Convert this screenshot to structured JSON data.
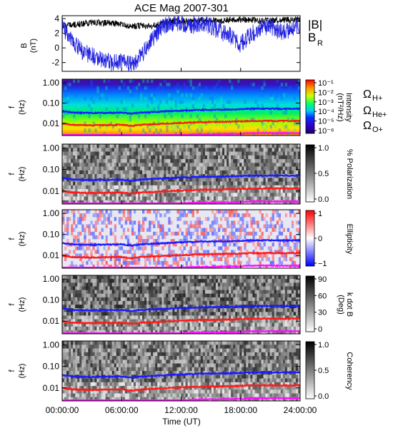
{
  "title": "ACE Mag 2007-301",
  "x_axis": {
    "label": "Time (UT)",
    "ticks": [
      "00:00:00",
      "06:00:00",
      "12:00:00",
      "18:00:00",
      "24:00:00"
    ],
    "range_hours": [
      0,
      24
    ]
  },
  "panel1": {
    "ylabel_line1": "B",
    "ylabel_line2": "(nT)",
    "ticks": [
      "4",
      "2",
      "0",
      "-2"
    ],
    "ylim": [
      -3.2,
      4.4
    ],
    "legend": [
      {
        "text": "|B|",
        "color": "#000000"
      },
      {
        "text": "B",
        "sub": "R",
        "color": "#2020e0"
      }
    ]
  },
  "freq_ticks": [
    "1.00",
    "0.10",
    "0.01"
  ],
  "freq_ylabel_line1": "f",
  "freq_ylabel_line2": "(Hz)",
  "spectrogram_panels": [
    {
      "colorbar": "rainbow",
      "cb_ticks": [
        "10⁻¹",
        "10⁻²",
        "10⁻³",
        "10⁻⁴",
        "10⁻⁵",
        "10⁻⁶"
      ],
      "cb_label_line1": "Intensity",
      "cb_label_line2": "(nT²/Hz)"
    },
    {
      "colorbar": "gray",
      "cb_ticks": [
        "1.0",
        "0.5",
        "0.0"
      ],
      "cb_label_line1": "% Polarization",
      "cb_label_line2": ""
    },
    {
      "colorbar": "redblue",
      "cb_ticks": [
        "1",
        "0",
        "−1"
      ],
      "cb_label_line1": "Ellipticity",
      "cb_label_line2": ""
    },
    {
      "colorbar": "gray",
      "cb_ticks": [
        "90",
        "60",
        "30",
        "0"
      ],
      "cb_label_line1": "k dot B",
      "cb_label_line2": "(Deg)"
    },
    {
      "colorbar": "gray",
      "cb_ticks": [
        "1.0",
        "0.5",
        "0.0"
      ],
      "cb_label_line1": "Coherency",
      "cb_label_line2": ""
    }
  ],
  "gyro_legend": [
    {
      "symbol": "Ω",
      "sub": "H+",
      "color": "#1a1aff"
    },
    {
      "symbol": "Ω",
      "sub": "He+",
      "color": "#ff1a1a"
    },
    {
      "symbol": "Ω",
      "sub": "O+",
      "color": "#ff10ff"
    }
  ],
  "colors": {
    "b_total": "#000000",
    "b_radial": "#2020e0",
    "omega_h": "#1a1aff",
    "omega_he": "#ff1a1a",
    "omega_o": "#ff10ff"
  },
  "chart_data": {
    "type": "line",
    "title": "ACE Mag 2007-301",
    "xlabel": "Time (UT)",
    "x_hours": [
      0,
      1,
      2,
      3,
      4,
      5,
      6,
      7,
      8,
      9,
      10,
      11,
      12,
      13,
      14,
      15,
      16,
      17,
      18,
      19,
      20,
      21,
      22,
      23,
      24
    ],
    "series": [
      {
        "name": "|B|",
        "ylabel": "B (nT)",
        "values": [
          2.9,
          3.1,
          3.3,
          3.5,
          3.4,
          3.4,
          3.2,
          3.0,
          3.0,
          3.0,
          3.3,
          3.7,
          3.6,
          3.6,
          3.8,
          3.7,
          3.7,
          3.8,
          3.9,
          3.8,
          3.7,
          3.7,
          3.8,
          3.8,
          3.9
        ]
      },
      {
        "name": "B_R",
        "ylabel": "B (nT)",
        "values": [
          3.0,
          1.0,
          -0.5,
          -1.0,
          -1.6,
          -2.0,
          -1.8,
          -2.3,
          -1.0,
          1.0,
          2.8,
          3.4,
          3.2,
          3.0,
          3.3,
          3.0,
          2.2,
          1.6,
          0.5,
          1.8,
          2.8,
          3.0,
          2.2,
          2.5,
          3.2
        ]
      },
      {
        "name": "Ω H+",
        "unit": "Hz",
        "values": [
          0.04,
          0.034,
          0.033,
          0.032,
          0.033,
          0.033,
          0.034,
          0.03,
          0.034,
          0.036,
          0.038,
          0.04,
          0.042,
          0.044,
          0.046,
          0.046,
          0.047,
          0.048,
          0.05,
          0.052,
          0.052,
          0.053,
          0.052,
          0.052,
          0.053
        ]
      },
      {
        "name": "Ω He+",
        "unit": "Hz",
        "values": [
          0.01,
          0.0085,
          0.0083,
          0.008,
          0.0083,
          0.0083,
          0.0085,
          0.0075,
          0.0085,
          0.009,
          0.0095,
          0.01,
          0.0105,
          0.011,
          0.0115,
          0.0115,
          0.0118,
          0.012,
          0.0125,
          0.013,
          0.013,
          0.0133,
          0.013,
          0.013,
          0.0133
        ]
      },
      {
        "name": "Ω O+",
        "unit": "Hz",
        "values": [
          0.0025,
          0.0021,
          0.0021,
          0.002,
          0.0021,
          0.0021,
          0.0021,
          0.0019,
          0.0021,
          0.0023,
          0.0024,
          0.0025,
          0.0026,
          0.0028,
          0.0029,
          0.0029,
          0.003,
          0.003,
          0.0031,
          0.0033,
          0.0033,
          0.0033,
          0.0033,
          0.0033,
          0.0033
        ]
      }
    ],
    "freq_ylim_hz": [
      0.0025,
      1.5
    ]
  }
}
